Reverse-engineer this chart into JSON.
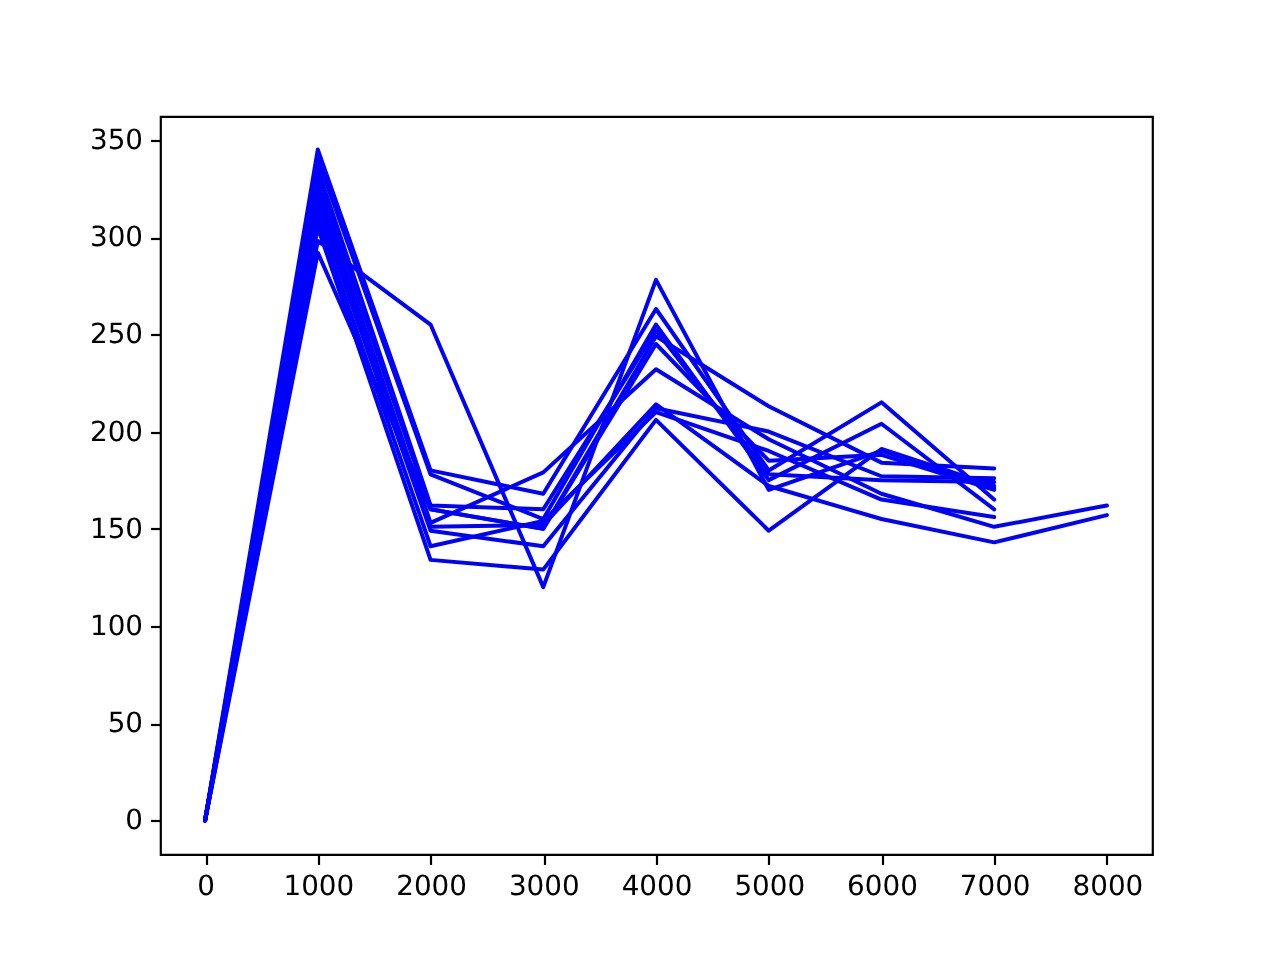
{
  "chart_data": {
    "type": "line",
    "x": [
      0,
      1000,
      2000,
      3000,
      4000,
      5000,
      6000,
      7000,
      8000
    ],
    "series": [
      {
        "color": "#0000ff",
        "values": [
          0,
          298,
          255,
          120,
          278,
          170,
          190,
          171,
          null
        ]
      },
      {
        "color": "#0000ff",
        "values": [
          0,
          345,
          180,
          168,
          263,
          180,
          215,
          165,
          null
        ]
      },
      {
        "color": "#0000ff",
        "values": [
          0,
          340,
          178,
          155,
          255,
          175,
          204,
          160,
          null
        ]
      },
      {
        "color": "#0000ff",
        "values": [
          0,
          335,
          162,
          160,
          252,
          178,
          175,
          174,
          null
        ]
      },
      {
        "color": "#0000ff",
        "values": [
          0,
          330,
          160,
          150,
          249,
          213,
          184,
          181,
          null
        ]
      },
      {
        "color": "#0000ff",
        "values": [
          0,
          325,
          153,
          179,
          232,
          196,
          168,
          151,
          162
        ]
      },
      {
        "color": "#0000ff",
        "values": [
          0,
          320,
          151,
          152,
          214,
          172,
          155,
          143,
          157
        ]
      },
      {
        "color": "#0000ff",
        "values": [
          0,
          315,
          149,
          141,
          212,
          200,
          177,
          176,
          null
        ]
      },
      {
        "color": "#0000ff",
        "values": [
          0,
          310,
          141,
          154,
          210,
          190,
          165,
          156,
          null
        ]
      },
      {
        "color": "#0000ff",
        "values": [
          0,
          305,
          134,
          129,
          206,
          149,
          191,
          172,
          null
        ]
      },
      {
        "color": "#0000ff",
        "values": [
          0,
          292,
          160,
          150,
          245,
          185,
          188,
          170,
          null
        ]
      }
    ],
    "xlim": [
      -400,
      8400
    ],
    "ylim": [
      -17.25,
      362.25
    ],
    "xticks": [
      0,
      1000,
      2000,
      3000,
      4000,
      5000,
      6000,
      7000,
      8000
    ],
    "yticks": [
      0,
      50,
      100,
      150,
      200,
      250,
      300,
      350
    ],
    "grid": false
  }
}
